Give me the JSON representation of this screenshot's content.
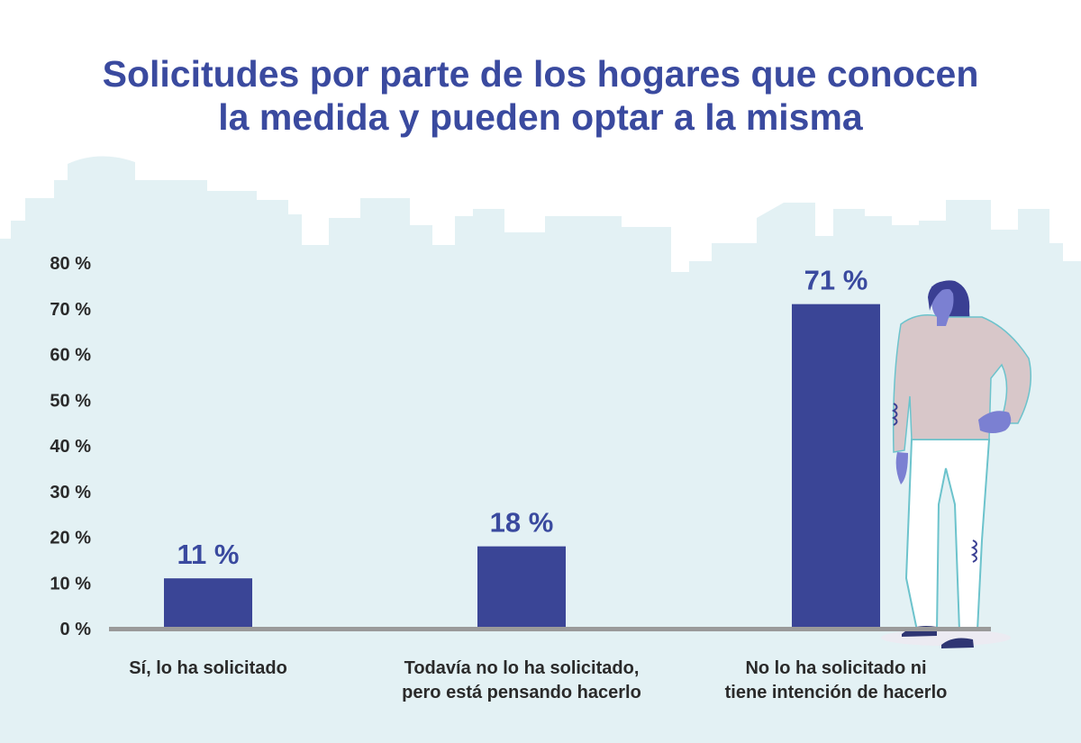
{
  "chart_data": {
    "type": "bar",
    "title_lines": [
      "Solicitudes por parte de los hogares que conocen",
      "la medida y pueden optar a la misma"
    ],
    "xlabel": "",
    "ylabel": "",
    "ylim": [
      0,
      80
    ],
    "yticks": [
      0,
      10,
      20,
      30,
      40,
      50,
      60,
      70,
      80
    ],
    "ytick_labels": [
      "0 %",
      "10 %",
      "20 %",
      "30 %",
      "40 %",
      "50 %",
      "60 %",
      "70 %",
      "80 %"
    ],
    "categories": [
      [
        "Sí, lo ha solicitado"
      ],
      [
        "Todavía no lo ha solicitado,",
        "pero está pensando hacerlo"
      ],
      [
        "No lo ha solicitado ni",
        "tiene intención de hacerlo"
      ]
    ],
    "values": [
      11,
      18,
      71
    ],
    "value_labels": [
      "11 %",
      "18 %",
      "71 %"
    ],
    "grid": false,
    "legend": "none",
    "colors": {
      "bar": "#3a4596",
      "title": "#3a4a9f",
      "value_label": "#3a4a9f",
      "axis_text": "#2a2a2a",
      "baseline": "#9a9a9a",
      "skyline": "#e3f1f4"
    }
  }
}
